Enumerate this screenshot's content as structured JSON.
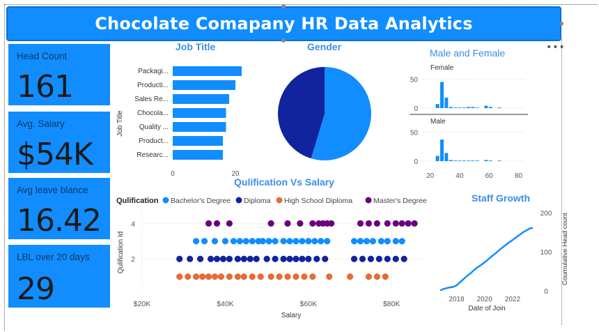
{
  "header": {
    "title": "Chocolate Comapany HR Data Analytics"
  },
  "cards": [
    {
      "label": "Head Count",
      "value": "161"
    },
    {
      "label": "Avg. Salary",
      "value": "$54K"
    },
    {
      "label": "Avg leave blance",
      "value": "16.42"
    },
    {
      "label": "LBL over 20 days",
      "value": "29"
    }
  ],
  "colors": {
    "accent": "#118DFF",
    "navy": "#12239E",
    "orange": "#E66C37",
    "purple": "#6B007B"
  },
  "chart_data": [
    {
      "id": "job_title",
      "type": "bar",
      "orientation": "horizontal",
      "title": "Job Title",
      "ylabel": "Job Title",
      "categories": [
        "Packagi...",
        "Producti...",
        "Sales Re...",
        "Chocola...",
        "Quality ...",
        "Product...",
        "Researc..."
      ],
      "values": [
        22,
        20,
        18,
        17,
        17,
        16,
        16
      ],
      "xticks": [
        "0",
        "20"
      ],
      "xlim": [
        0,
        30
      ]
    },
    {
      "id": "gender",
      "type": "pie",
      "title": "Gender",
      "slices": [
        {
          "value": 88,
          "color": "#118DFF"
        },
        {
          "value": 73,
          "color": "#12239E"
        }
      ]
    },
    {
      "id": "male_female",
      "type": "bar",
      "title": "Male and Female",
      "panels": [
        {
          "name": "Female",
          "values": [
            {
              "x": 25,
              "y": 7
            },
            {
              "x": 28,
              "y": 45
            },
            {
              "x": 31,
              "y": 18
            },
            {
              "x": 34,
              "y": 2
            },
            {
              "x": 37,
              "y": 1
            },
            {
              "x": 40,
              "y": 1
            },
            {
              "x": 43,
              "y": 1
            },
            {
              "x": 46,
              "y": 2
            },
            {
              "x": 49,
              "y": 2
            },
            {
              "x": 52,
              "y": 1
            },
            {
              "x": 58,
              "y": 4
            },
            {
              "x": 61,
              "y": 2
            },
            {
              "x": 67,
              "y": 1
            }
          ]
        },
        {
          "name": "Male",
          "values": [
            {
              "x": 25,
              "y": 9
            },
            {
              "x": 28,
              "y": 37
            },
            {
              "x": 31,
              "y": 14
            },
            {
              "x": 34,
              "y": 2
            },
            {
              "x": 37,
              "y": 1
            },
            {
              "x": 40,
              "y": 1
            },
            {
              "x": 43,
              "y": 1
            },
            {
              "x": 46,
              "y": 1
            },
            {
              "x": 49,
              "y": 1
            },
            {
              "x": 52,
              "y": 1
            },
            {
              "x": 58,
              "y": 2
            },
            {
              "x": 61,
              "y": 1
            },
            {
              "x": 67,
              "y": 1
            }
          ]
        }
      ],
      "yticks": [
        "0",
        "50"
      ],
      "ylim": [
        0,
        60
      ],
      "xticks": [
        "20",
        "40",
        "60",
        "80"
      ],
      "xlim": [
        15,
        85
      ]
    },
    {
      "id": "qualification_salary",
      "type": "scatter",
      "title": "Qulification Vs Salary",
      "legend_title": "Qulification",
      "xlabel": "Salary",
      "ylabel": "Qulification Id",
      "xlim": [
        20000,
        88000
      ],
      "xticks": [
        {
          "v": 20000,
          "label": "$20K"
        },
        {
          "v": 40000,
          "label": "$40K"
        },
        {
          "v": 60000,
          "label": "$60K"
        },
        {
          "v": 80000,
          "label": "$80K"
        }
      ],
      "ylim": [
        0.2,
        4.8
      ],
      "yticks": [
        "2",
        "4"
      ],
      "series": [
        {
          "name": "Bachelor's Degree",
          "color": "#118DFF",
          "y": 3,
          "x": [
            33000,
            35000,
            37500,
            40000,
            42000,
            43500,
            45000,
            46500,
            48000,
            49000,
            50500,
            52000,
            54000,
            55500,
            57000,
            58500,
            60000,
            61500,
            63000,
            64500,
            71000,
            72500,
            74000,
            75500,
            77500,
            79000,
            81000,
            82500
          ]
        },
        {
          "name": "Diploma",
          "color": "#12239E",
          "y": 2,
          "x": [
            29000,
            31500,
            34000,
            36500,
            38000,
            39500,
            41000,
            43000,
            44500,
            46000,
            47500,
            50000,
            52000,
            54000,
            55500,
            57000,
            58500,
            60000,
            62000,
            64000,
            71000,
            73000,
            75000,
            77000,
            79000,
            81000,
            83000
          ]
        },
        {
          "name": "High School Diploma",
          "color": "#E66C37",
          "y": 1,
          "x": [
            29000,
            31000,
            33000,
            34500,
            36000,
            37500,
            39000,
            41000,
            43000,
            44500,
            46500,
            48500,
            51000,
            53000,
            55000,
            57000,
            59000,
            61000,
            65000,
            70000,
            74500,
            76500,
            78500
          ]
        },
        {
          "name": "Master's Degree",
          "color": "#6B007B",
          "y": 4,
          "x": [
            36000,
            38000,
            41000,
            51000,
            55000,
            58000,
            61000,
            62500,
            63500,
            64500,
            65500,
            72500,
            74500,
            76500,
            79000,
            81000,
            82500,
            84000,
            85500
          ]
        }
      ]
    },
    {
      "id": "staff_growth",
      "type": "line",
      "title": "Staff Growth",
      "xlabel": "Date of Join",
      "ylabel": "Coumulative Head count",
      "xlim": [
        "2016-11-01",
        "2023-07-01"
      ],
      "xticks": [
        "2018",
        "2020",
        "2022"
      ],
      "ylim": [
        0,
        200
      ],
      "yticks": [
        "0",
        "100",
        "200"
      ],
      "points": [
        [
          "2016-11-01",
          1
        ],
        [
          "2017-02-01",
          5
        ],
        [
          "2017-06-01",
          8
        ],
        [
          "2017-10-01",
          10
        ],
        [
          "2018-01-01",
          14
        ],
        [
          "2018-04-01",
          22
        ],
        [
          "2018-07-01",
          30
        ],
        [
          "2018-10-01",
          38
        ],
        [
          "2019-01-01",
          45
        ],
        [
          "2019-04-01",
          53
        ],
        [
          "2019-07-01",
          60
        ],
        [
          "2019-10-01",
          66
        ],
        [
          "2020-01-01",
          73
        ],
        [
          "2020-04-01",
          80
        ],
        [
          "2020-07-01",
          88
        ],
        [
          "2020-10-01",
          95
        ],
        [
          "2021-01-01",
          103
        ],
        [
          "2021-04-01",
          110
        ],
        [
          "2021-07-01",
          117
        ],
        [
          "2021-10-01",
          124
        ],
        [
          "2022-01-01",
          130
        ],
        [
          "2022-04-01",
          137
        ],
        [
          "2022-07-01",
          143
        ],
        [
          "2022-10-01",
          150
        ],
        [
          "2023-01-01",
          155
        ],
        [
          "2023-04-01",
          160
        ],
        [
          "2023-06-15",
          161
        ]
      ]
    }
  ]
}
